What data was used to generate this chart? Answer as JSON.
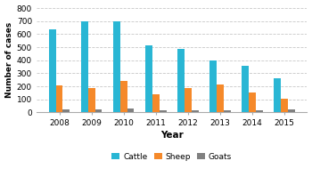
{
  "years": [
    2008,
    2009,
    2010,
    2011,
    2012,
    2013,
    2014,
    2015
  ],
  "cattle": [
    635,
    700,
    700,
    515,
    485,
    400,
    360,
    265
  ],
  "sheep": [
    210,
    185,
    238,
    140,
    188,
    215,
    150,
    108
  ],
  "goats": [
    25,
    20,
    30,
    15,
    18,
    18,
    18,
    22
  ],
  "cattle_color": "#29b6d4",
  "sheep_color": "#f5892a",
  "goats_color": "#808080",
  "xlabel": "Year",
  "ylabel": "Number of cases",
  "ylim": [
    0,
    800
  ],
  "yticks": [
    0,
    100,
    200,
    300,
    400,
    500,
    600,
    700,
    800
  ],
  "legend_labels": [
    "Cattle",
    "Sheep",
    "Goats"
  ],
  "bar_width": 0.22,
  "grid_color": "#c8c8c8",
  "bg_color": "#ffffff"
}
